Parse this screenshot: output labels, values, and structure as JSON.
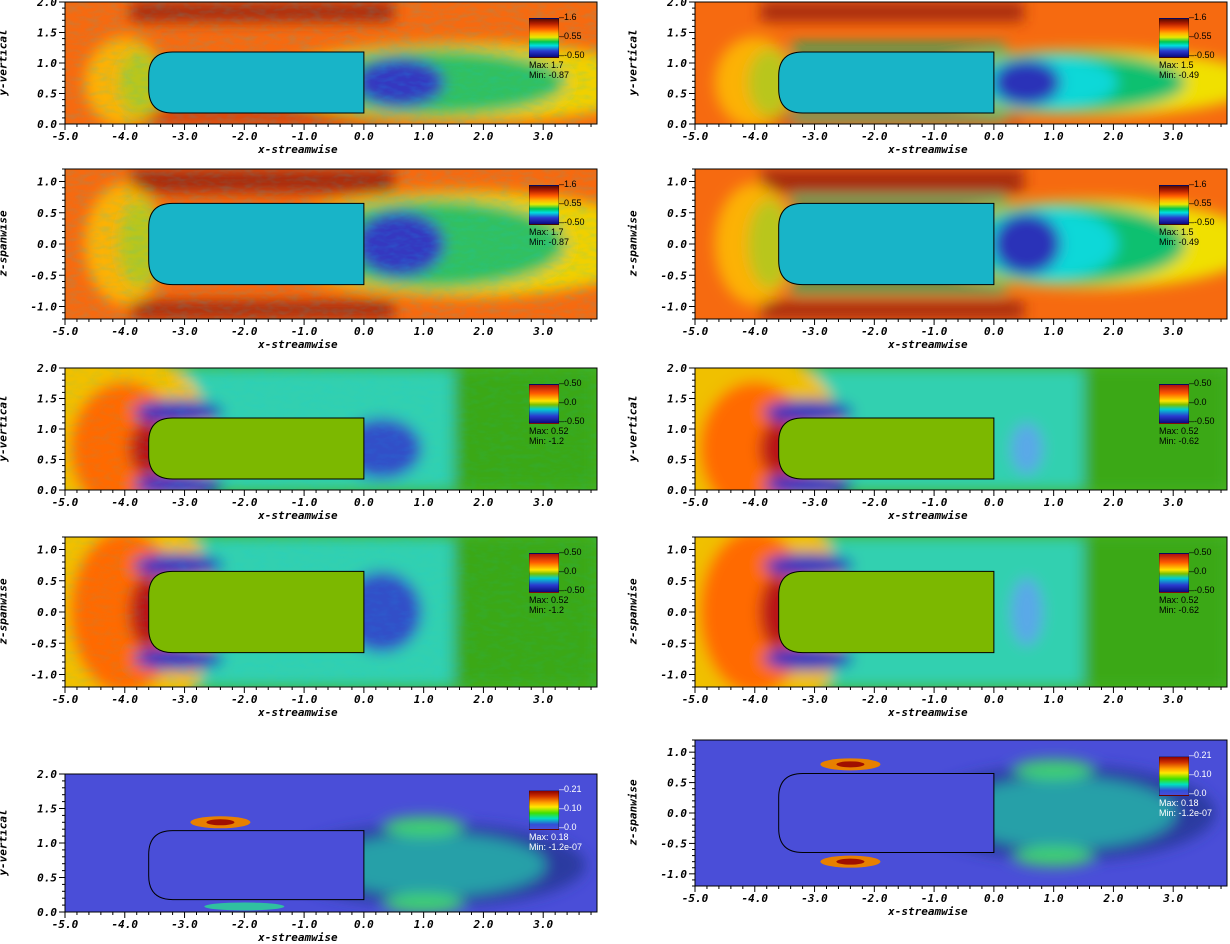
{
  "axis_labels": {
    "x": "x-streamwise",
    "y_vertical": "y-vertical",
    "z_spanwise": "z-spanwise"
  },
  "x_ticks": [
    "-5.0",
    "-4.0",
    "-3.0",
    "-2.0",
    "-1.0",
    "0.0",
    "1.0",
    "2.0",
    "3.0"
  ],
  "y_ticks_vertical": [
    "0.0",
    "0.5",
    "1.0",
    "1.5",
    "2.0"
  ],
  "y_ticks_spanwise": [
    "-1.0",
    "-0.5",
    "0.0",
    "0.5",
    "1.0"
  ],
  "panels": [
    {
      "id": "p1",
      "plane": "xy",
      "field": "velocity",
      "style": "instantaneous",
      "legend": {
        "ticks": [
          "1.6",
          "0.55",
          "-0.50"
        ],
        "max": "Max: 1.7",
        "min": "Min: -0.87"
      }
    },
    {
      "id": "p2",
      "plane": "xy",
      "field": "velocity",
      "style": "mean",
      "legend": {
        "ticks": [
          "1.6",
          "0.55",
          "-0.50"
        ],
        "max": "Max: 1.5",
        "min": "Min: -0.49"
      }
    },
    {
      "id": "p3",
      "plane": "xz",
      "field": "velocity",
      "style": "instantaneous",
      "legend": {
        "ticks": [
          "1.6",
          "0.55",
          "-0.50"
        ],
        "max": "Max: 1.7",
        "min": "Min: -0.87"
      }
    },
    {
      "id": "p4",
      "plane": "xz",
      "field": "velocity",
      "style": "mean",
      "legend": {
        "ticks": [
          "1.6",
          "0.55",
          "-0.50"
        ],
        "max": "Max:  1.5",
        "min": "Min: -0.49"
      }
    },
    {
      "id": "p5",
      "plane": "xy",
      "field": "pressure",
      "style": "instantaneous",
      "legend": {
        "ticks": [
          "0.50",
          "0.0",
          "-0.50"
        ],
        "max": "Max: 0.52",
        "min": "Min: -1.2"
      }
    },
    {
      "id": "p6",
      "plane": "xy",
      "field": "pressure",
      "style": "mean",
      "legend": {
        "ticks": [
          "0.50",
          "0.0",
          "-0.50"
        ],
        "max": "Max: 0.52",
        "min": "Min: -0.62"
      }
    },
    {
      "id": "p7",
      "plane": "xz",
      "field": "pressure",
      "style": "instantaneous",
      "legend": {
        "ticks": [
          "0.50",
          "0.0",
          "-0.50"
        ],
        "max": "Max:  0.52",
        "min": "Min: -1.2"
      }
    },
    {
      "id": "p8",
      "plane": "xz",
      "field": "pressure",
      "style": "mean",
      "legend": {
        "ticks": [
          "0.50",
          "0.0",
          "-0.50"
        ],
        "max": "Max:  0.52",
        "min": "Min: -0.62"
      }
    },
    {
      "id": "p9",
      "plane": "xy",
      "field": "tke",
      "style": "mean",
      "legend": {
        "ticks": [
          "0.21",
          "0.10",
          "0.0"
        ],
        "max": "Max: 0.18",
        "min": "Min: -1.2e-07"
      }
    },
    {
      "id": "p10",
      "plane": "xz",
      "field": "tke",
      "style": "mean",
      "legend": {
        "ticks": [
          "0.21",
          "0.10",
          "0.0"
        ],
        "max": "Max: 0.18",
        "min": "Min: -1.2e-07"
      }
    }
  ]
}
